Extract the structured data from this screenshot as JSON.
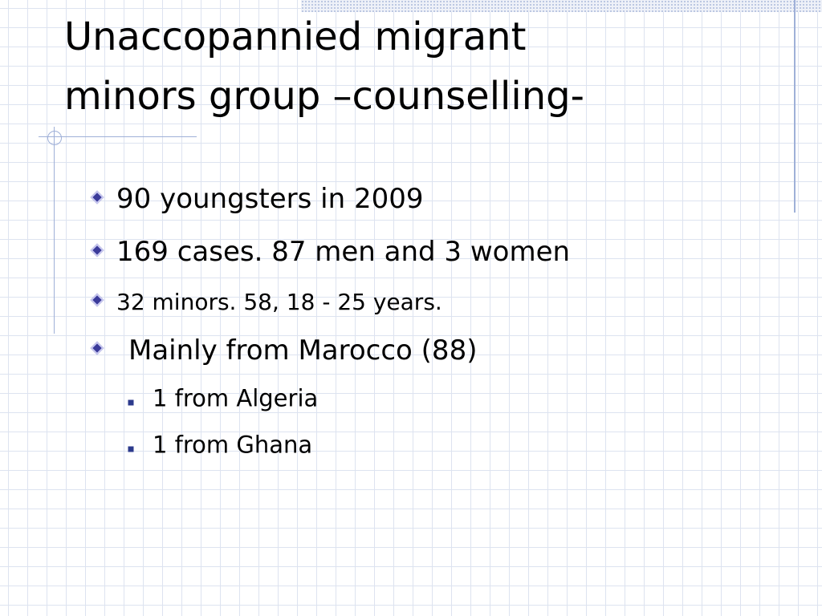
{
  "title": [
    "Unaccopannied migrant",
    "minors group –counselling-"
  ],
  "bullets": [
    {
      "text": "90 youngsters in 2009"
    },
    {
      "text": "169 cases. 87 men and 3 women"
    },
    {
      "text": "32 minors. 58, 18 - 25 years."
    },
    {
      "text": "Mainly from Marocco (88)",
      "sub": [
        "1 from Algeria",
        "1 from Ghana"
      ]
    }
  ]
}
